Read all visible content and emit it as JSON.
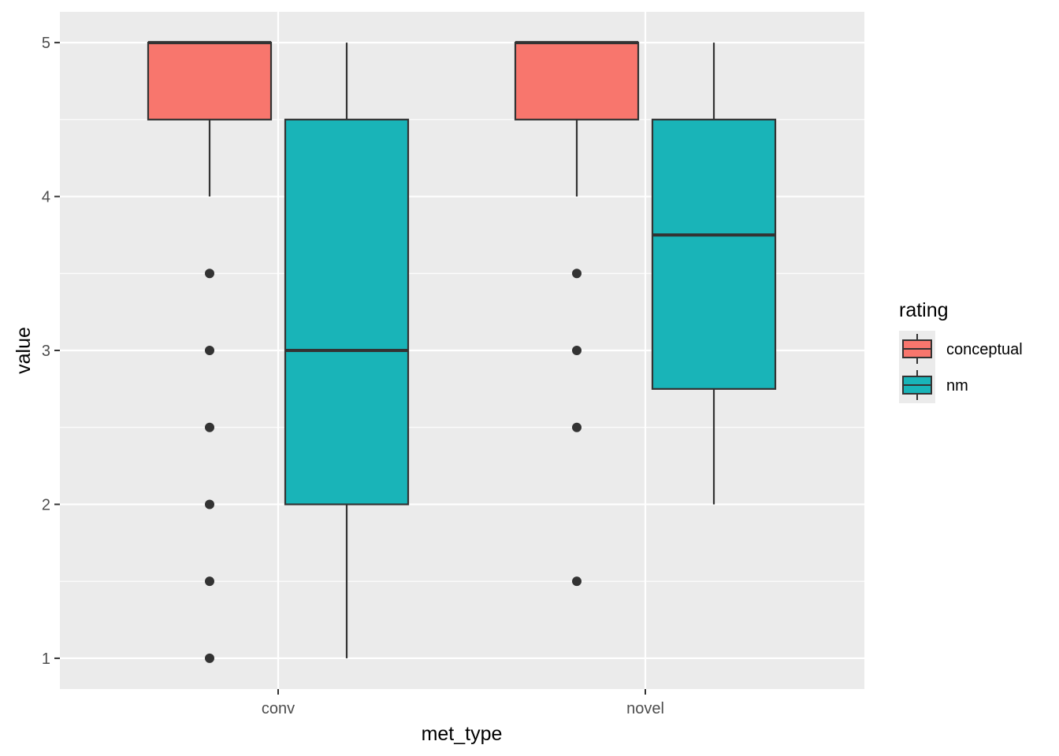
{
  "chart_data": {
    "type": "boxplot",
    "xlabel": "met_type",
    "ylabel": "value",
    "categories": [
      "conv",
      "novel"
    ],
    "y_ticks": [
      1,
      2,
      3,
      4,
      5
    ],
    "ylim": [
      0.8,
      5.2
    ],
    "grid": true,
    "legend": {
      "title": "rating",
      "placement": "right",
      "entries": [
        "conceptual",
        "nm"
      ]
    },
    "series": [
      {
        "name": "conceptual",
        "color": "#F8766D",
        "boxes": [
          {
            "category": "conv",
            "min": 4,
            "q1": 4.5,
            "median": 5,
            "q3": 5,
            "max": 5,
            "outliers": [
              3.5,
              3,
              2.5,
              2,
              1.5,
              1
            ]
          },
          {
            "category": "novel",
            "min": 4,
            "q1": 4.5,
            "median": 5,
            "q3": 5,
            "max": 5,
            "outliers": [
              3.5,
              3,
              2.5,
              1.5
            ]
          }
        ]
      },
      {
        "name": "nm",
        "color": "#19B4B8",
        "boxes": [
          {
            "category": "conv",
            "min": 1,
            "q1": 2,
            "median": 3,
            "q3": 4.5,
            "max": 5,
            "outliers": []
          },
          {
            "category": "novel",
            "min": 2,
            "q1": 2.75,
            "median": 3.75,
            "q3": 4.5,
            "max": 5,
            "outliers": []
          }
        ]
      }
    ]
  }
}
